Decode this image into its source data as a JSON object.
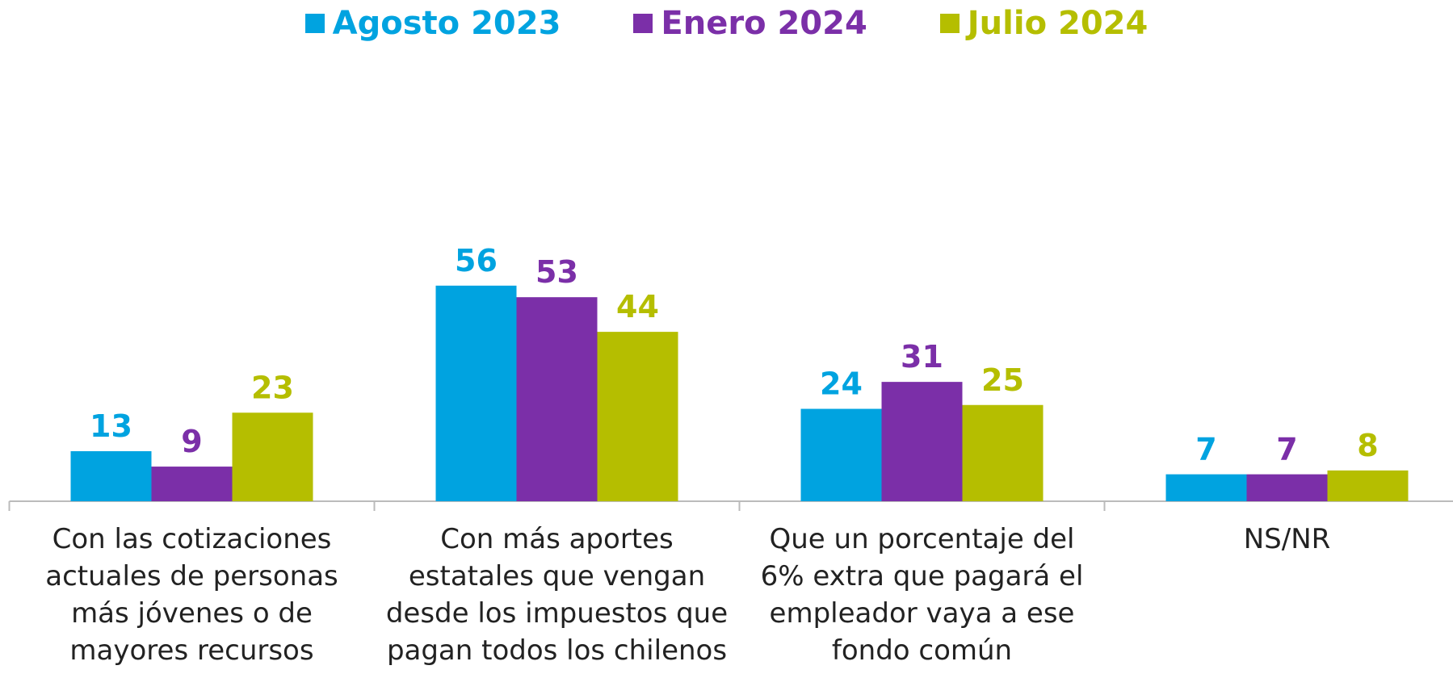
{
  "chart_data": {
    "type": "bar",
    "categories": [
      "Con las cotizaciones actuales de personas más jóvenes o de mayores recursos",
      "Con más aportes estatales que vengan desde los impuestos que pagan todos los chilenos",
      "Que un porcentaje del 6% extra que pagará el empleador vaya a ese fondo común",
      "NS/NR"
    ],
    "series": [
      {
        "name": "Agosto 2023",
        "color": "#00a3e0",
        "values": [
          13,
          56,
          24,
          7
        ]
      },
      {
        "name": "Enero 2024",
        "color": "#7b2fa8",
        "values": [
          9,
          53,
          31,
          7
        ]
      },
      {
        "name": "Julio 2024",
        "color": "#b5be00",
        "values": [
          23,
          44,
          25,
          8
        ]
      }
    ],
    "legend": "top"
  }
}
